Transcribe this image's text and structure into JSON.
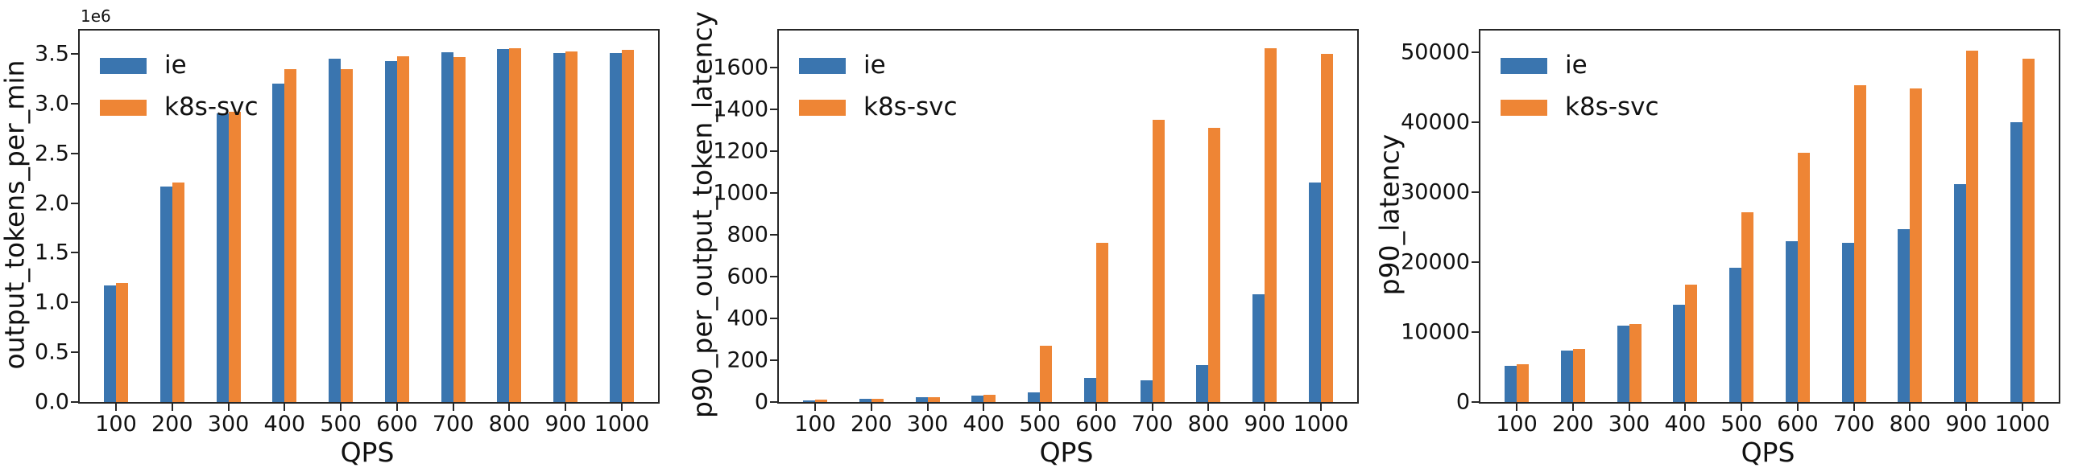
{
  "figure": {
    "background_color": "#ffffff",
    "spine_color": "#262626",
    "text_color": "#111111"
  },
  "chart_data": [
    {
      "type": "bar",
      "ylabel": "output_tokens_per_min",
      "xlabel": "QPS",
      "offset_text": "1e6",
      "legend_position": "upper left",
      "grid": false,
      "categories": [
        100,
        200,
        300,
        400,
        500,
        600,
        700,
        800,
        900,
        1000
      ],
      "series": [
        {
          "name": "ie",
          "color": "#3a75af",
          "values": [
            1170000,
            2165000,
            2905000,
            3200000,
            3450000,
            3430000,
            3520000,
            3550000,
            3510000,
            3505000
          ]
        },
        {
          "name": "k8s-svc",
          "color": "#ee8535",
          "values": [
            1200000,
            2210000,
            2915000,
            3350000,
            3350000,
            3480000,
            3465000,
            3557000,
            3525000,
            3540000
          ]
        }
      ],
      "ylim": [
        0,
        3735000
      ],
      "yticks": [
        0,
        500000,
        1000000,
        1500000,
        2000000,
        2500000,
        3000000,
        3500000
      ],
      "ytick_labels": [
        "0.0",
        "0.5",
        "1.0",
        "1.5",
        "2.0",
        "2.5",
        "3.0",
        "3.5"
      ]
    },
    {
      "type": "bar",
      "ylabel": "p90_per_output_token_latency",
      "xlabel": "QPS",
      "legend_position": "upper left",
      "grid": false,
      "categories": [
        100,
        200,
        300,
        400,
        500,
        600,
        700,
        800,
        900,
        1000
      ],
      "series": [
        {
          "name": "ie",
          "color": "#3a75af",
          "values": [
            8,
            15,
            22,
            30,
            47,
            115,
            105,
            175,
            515,
            1050
          ]
        },
        {
          "name": "k8s-svc",
          "color": "#ee8535",
          "values": [
            10,
            16,
            23,
            36,
            270,
            760,
            1350,
            1310,
            1690,
            1665
          ]
        }
      ],
      "ylim": [
        0,
        1775
      ],
      "yticks": [
        0,
        200,
        400,
        600,
        800,
        1000,
        1200,
        1400,
        1600
      ],
      "ytick_labels": [
        "0",
        "200",
        "400",
        "600",
        "800",
        "1000",
        "1200",
        "1400",
        "1600"
      ]
    },
    {
      "type": "bar",
      "ylabel": "p90_latency",
      "xlabel": "QPS",
      "legend_position": "upper left",
      "grid": false,
      "categories": [
        100,
        200,
        300,
        400,
        500,
        600,
        700,
        800,
        900,
        1000
      ],
      "series": [
        {
          "name": "ie",
          "color": "#3a75af",
          "values": [
            5200,
            7400,
            10900,
            13900,
            19200,
            23000,
            22800,
            24700,
            31200,
            40000
          ]
        },
        {
          "name": "k8s-svc",
          "color": "#ee8535",
          "values": [
            5400,
            7600,
            11100,
            16800,
            27100,
            35600,
            45300,
            44800,
            50200,
            49100
          ]
        }
      ],
      "ylim": [
        0,
        53100
      ],
      "yticks": [
        0,
        10000,
        20000,
        30000,
        40000,
        50000
      ],
      "ytick_labels": [
        "0",
        "10000",
        "20000",
        "30000",
        "40000",
        "50000"
      ]
    }
  ]
}
